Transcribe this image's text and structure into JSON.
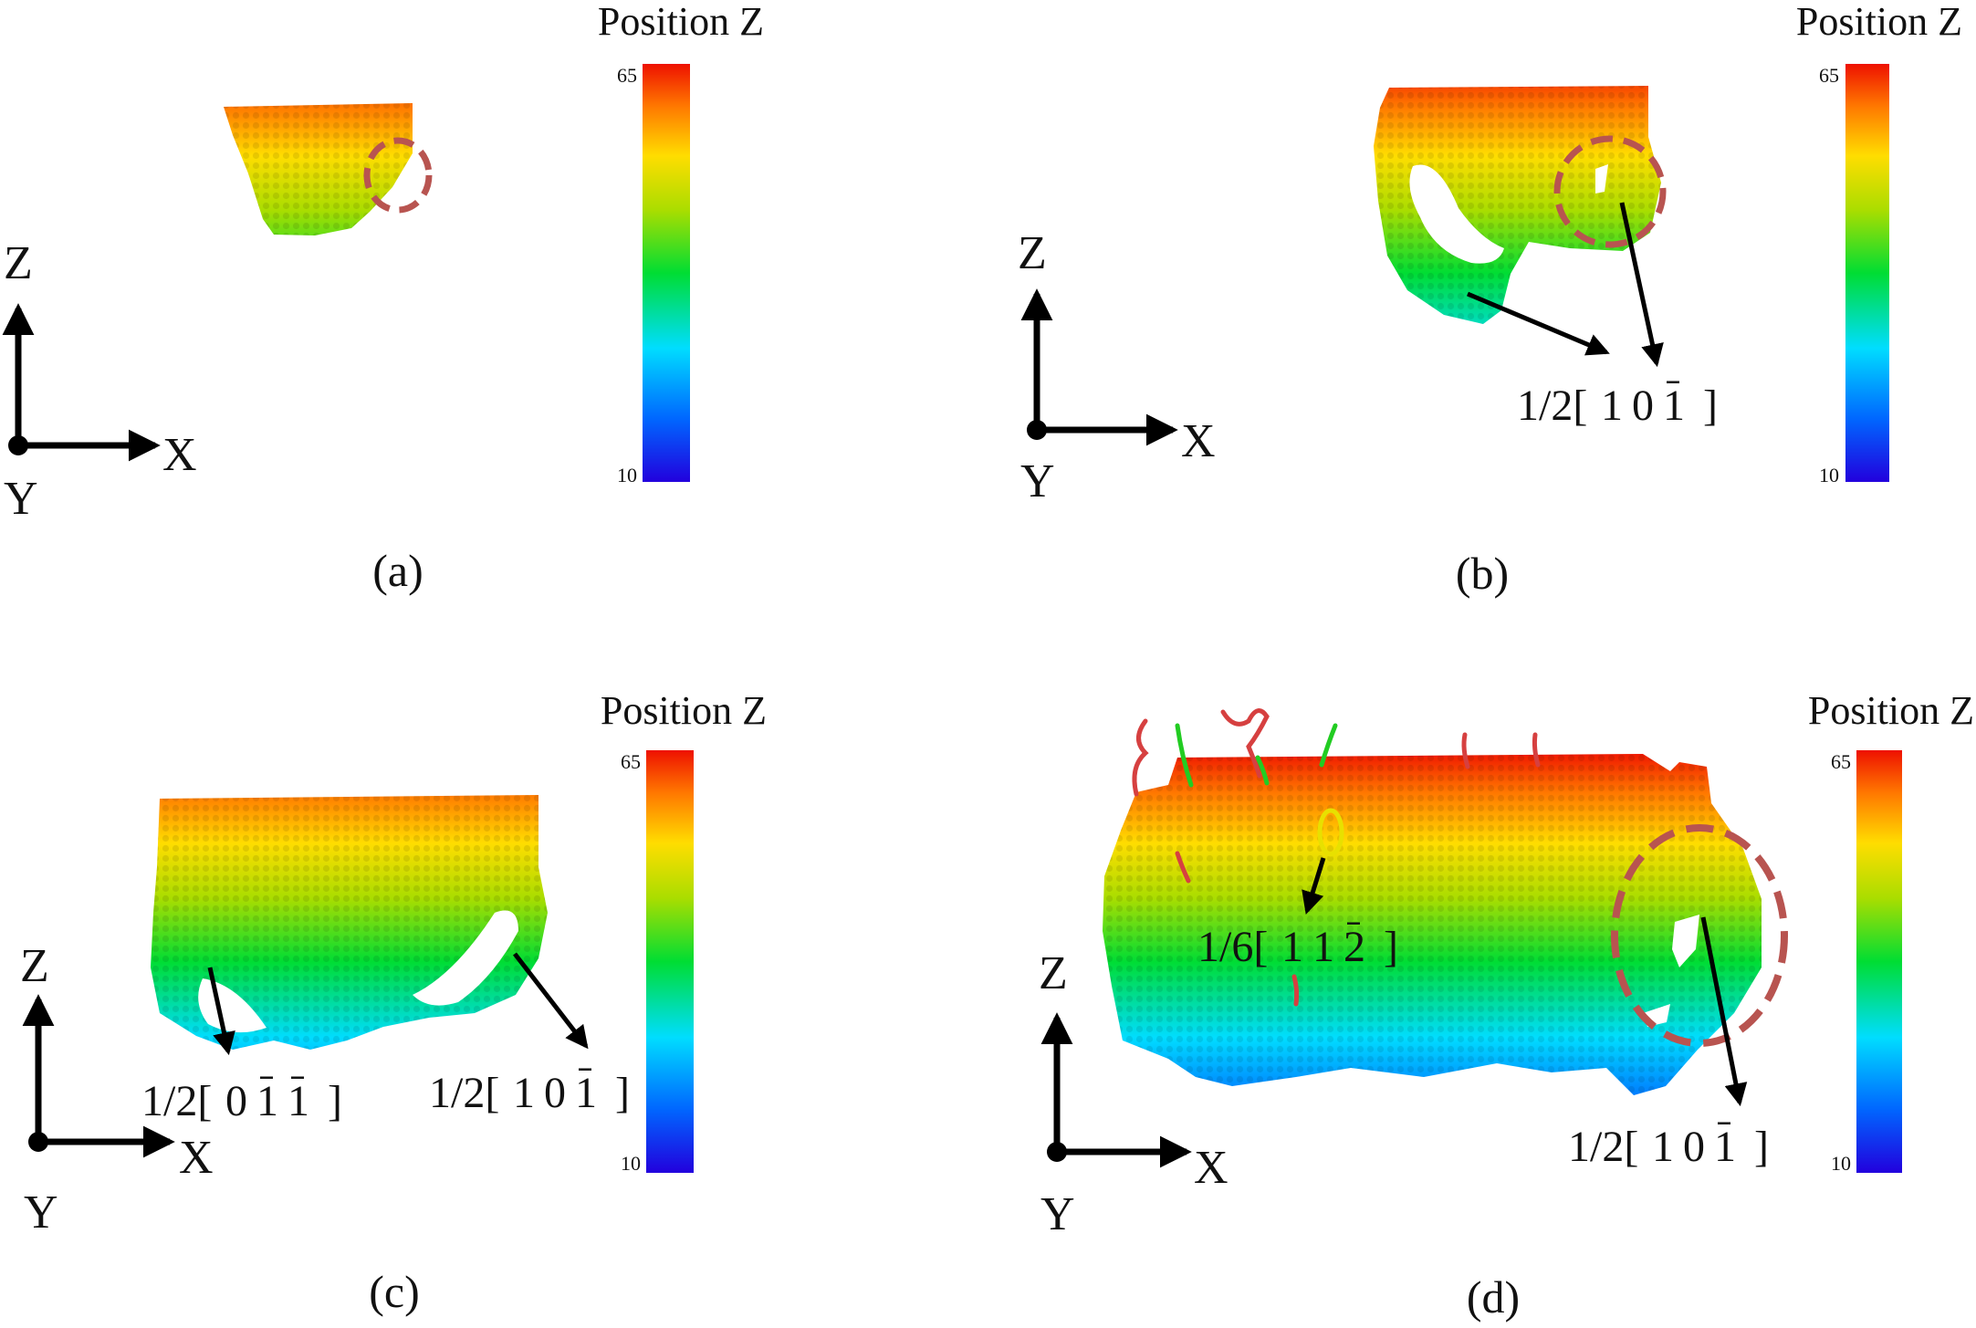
{
  "panels": [
    {
      "id": "a",
      "caption": "(a)",
      "colorbar": {
        "title": "Position Z",
        "max_label": "65",
        "min_label": "10"
      },
      "axes": {
        "z": "Z",
        "x": "X",
        "y": "Y"
      },
      "annotations": []
    },
    {
      "id": "b",
      "caption": "(b)",
      "colorbar": {
        "title": "Position Z",
        "max_label": "65",
        "min_label": "10"
      },
      "axes": {
        "z": "Z",
        "x": "X",
        "y": "Y"
      },
      "annotations": [
        {
          "prefix": "1/2[",
          "indices": [
            "1",
            "0",
            "1"
          ],
          "bar": [
            false,
            false,
            true
          ],
          "suffix": "]"
        }
      ]
    },
    {
      "id": "c",
      "caption": "(c)",
      "colorbar": {
        "title": "Position Z",
        "max_label": "65",
        "min_label": "10"
      },
      "axes": {
        "z": "Z",
        "x": "X",
        "y": "Y"
      },
      "annotations": [
        {
          "prefix": "1/2[",
          "indices": [
            "0",
            "1",
            "1"
          ],
          "bar": [
            false,
            true,
            true
          ],
          "suffix": "]"
        },
        {
          "prefix": "1/2[",
          "indices": [
            "1",
            "0",
            "1"
          ],
          "bar": [
            false,
            false,
            true
          ],
          "suffix": "]"
        }
      ]
    },
    {
      "id": "d",
      "caption": "(d)",
      "colorbar": {
        "title": "Position Z",
        "max_label": "65",
        "min_label": "10"
      },
      "axes": {
        "z": "Z",
        "x": "X",
        "y": "Y"
      },
      "annotations": [
        {
          "prefix": "1/6[",
          "indices": [
            "1",
            "1",
            "2"
          ],
          "bar": [
            false,
            false,
            true
          ],
          "suffix": "]"
        },
        {
          "prefix": "1/2[",
          "indices": [
            "1",
            "0",
            "1"
          ],
          "bar": [
            false,
            false,
            true
          ],
          "suffix": "]"
        }
      ]
    }
  ],
  "colors": {
    "colormap": [
      "#2200dd",
      "#0066ff",
      "#00ddff",
      "#00dd33",
      "#aadd00",
      "#ffdd00",
      "#ff7700",
      "#ee1100"
    ],
    "dashed_circle": "#b85450",
    "small_loop": "#e8e000",
    "arrow": "#000000"
  }
}
